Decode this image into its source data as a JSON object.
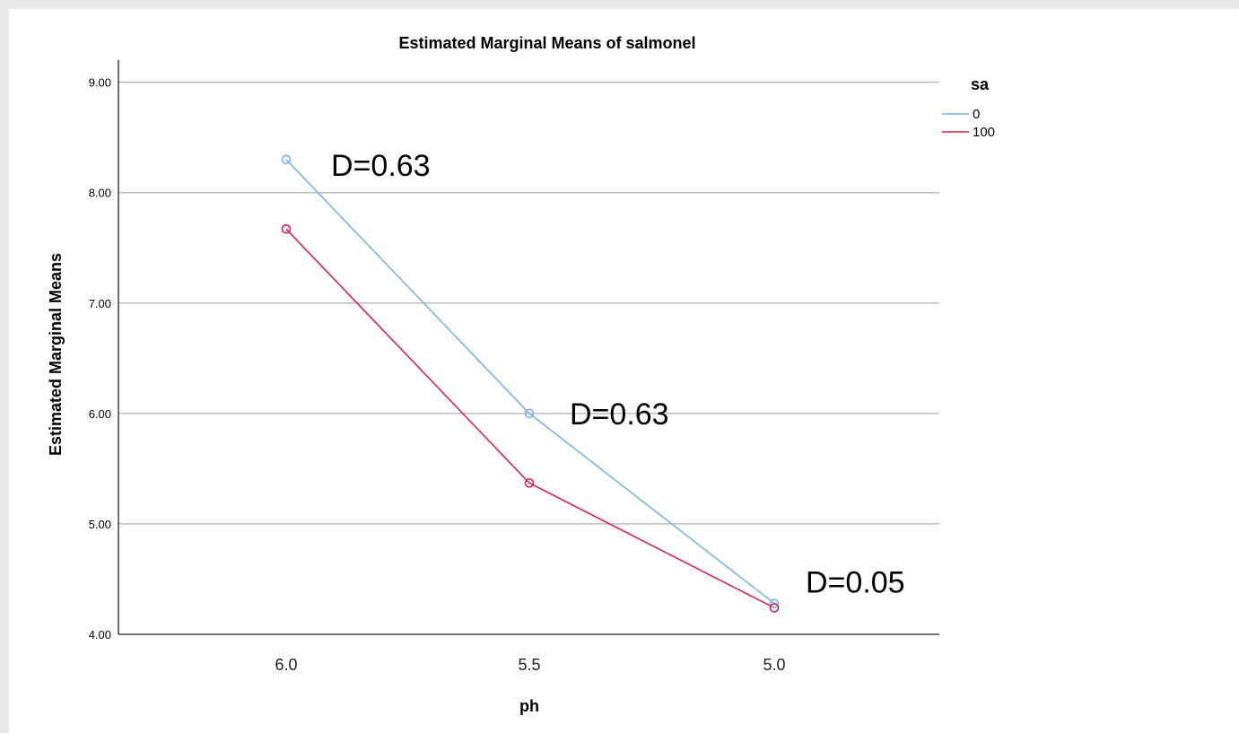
{
  "chart_data": {
    "type": "line",
    "title": "Estimated Marginal Means of salmonel",
    "xlabel": "ph",
    "ylabel": "Estimated Marginal Means",
    "categories": [
      "6.0",
      "5.5",
      "5.0"
    ],
    "ylim": [
      4.0,
      9.2
    ],
    "yticks": [
      4.0,
      5.0,
      6.0,
      7.0,
      8.0,
      9.0
    ],
    "ytick_labels": [
      "4.00",
      "5.00",
      "6.00",
      "7.00",
      "8.00",
      "9.00"
    ],
    "grid": "horizontal",
    "legend": {
      "title": "sa",
      "placement": "top-right"
    },
    "series": [
      {
        "name": "0",
        "color": "#7fb0e8",
        "values": [
          8.3,
          6.0,
          4.28
        ]
      },
      {
        "name": "100",
        "color": "#d9214e",
        "values": [
          7.67,
          5.37,
          4.24
        ]
      }
    ],
    "annotations": [
      {
        "text": "D=0.63",
        "x": "6.0",
        "y": 8.3
      },
      {
        "text": "D=0.63",
        "x": "5.5",
        "y": 6.0
      },
      {
        "text": "D=0.05",
        "x": "5.0",
        "y": 4.28
      }
    ]
  }
}
